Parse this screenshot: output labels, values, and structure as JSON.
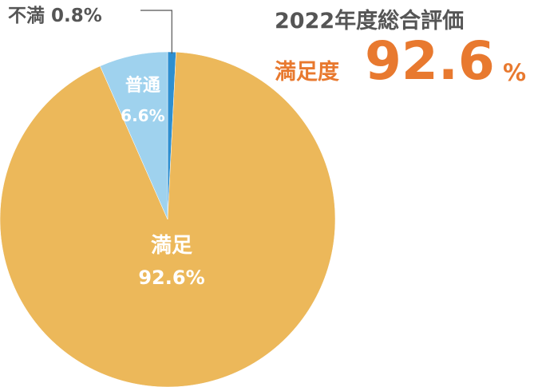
{
  "title": "2022年度総合評価",
  "headline": {
    "label": "満足度",
    "value": "92.6",
    "unit": "%"
  },
  "chart_data": {
    "type": "pie",
    "title": "2022年度総合評価",
    "start_angle_deg": 0,
    "direction": "clockwise",
    "slices": [
      {
        "label": "不満",
        "value": 0.8,
        "value_label": "0.8%",
        "color": "#2e8fd0",
        "label_color": "#555555",
        "label_placement": "outside-leader"
      },
      {
        "label": "満足",
        "value": 92.6,
        "value_label": "92.6%",
        "color": "#ecb85a",
        "label_color": "#ffffff",
        "label_placement": "inside"
      },
      {
        "label": "普通",
        "value": 6.6,
        "value_label": "6.6%",
        "color": "#9fd2ee",
        "label_color": "#ffffff",
        "label_placement": "inside"
      }
    ]
  }
}
